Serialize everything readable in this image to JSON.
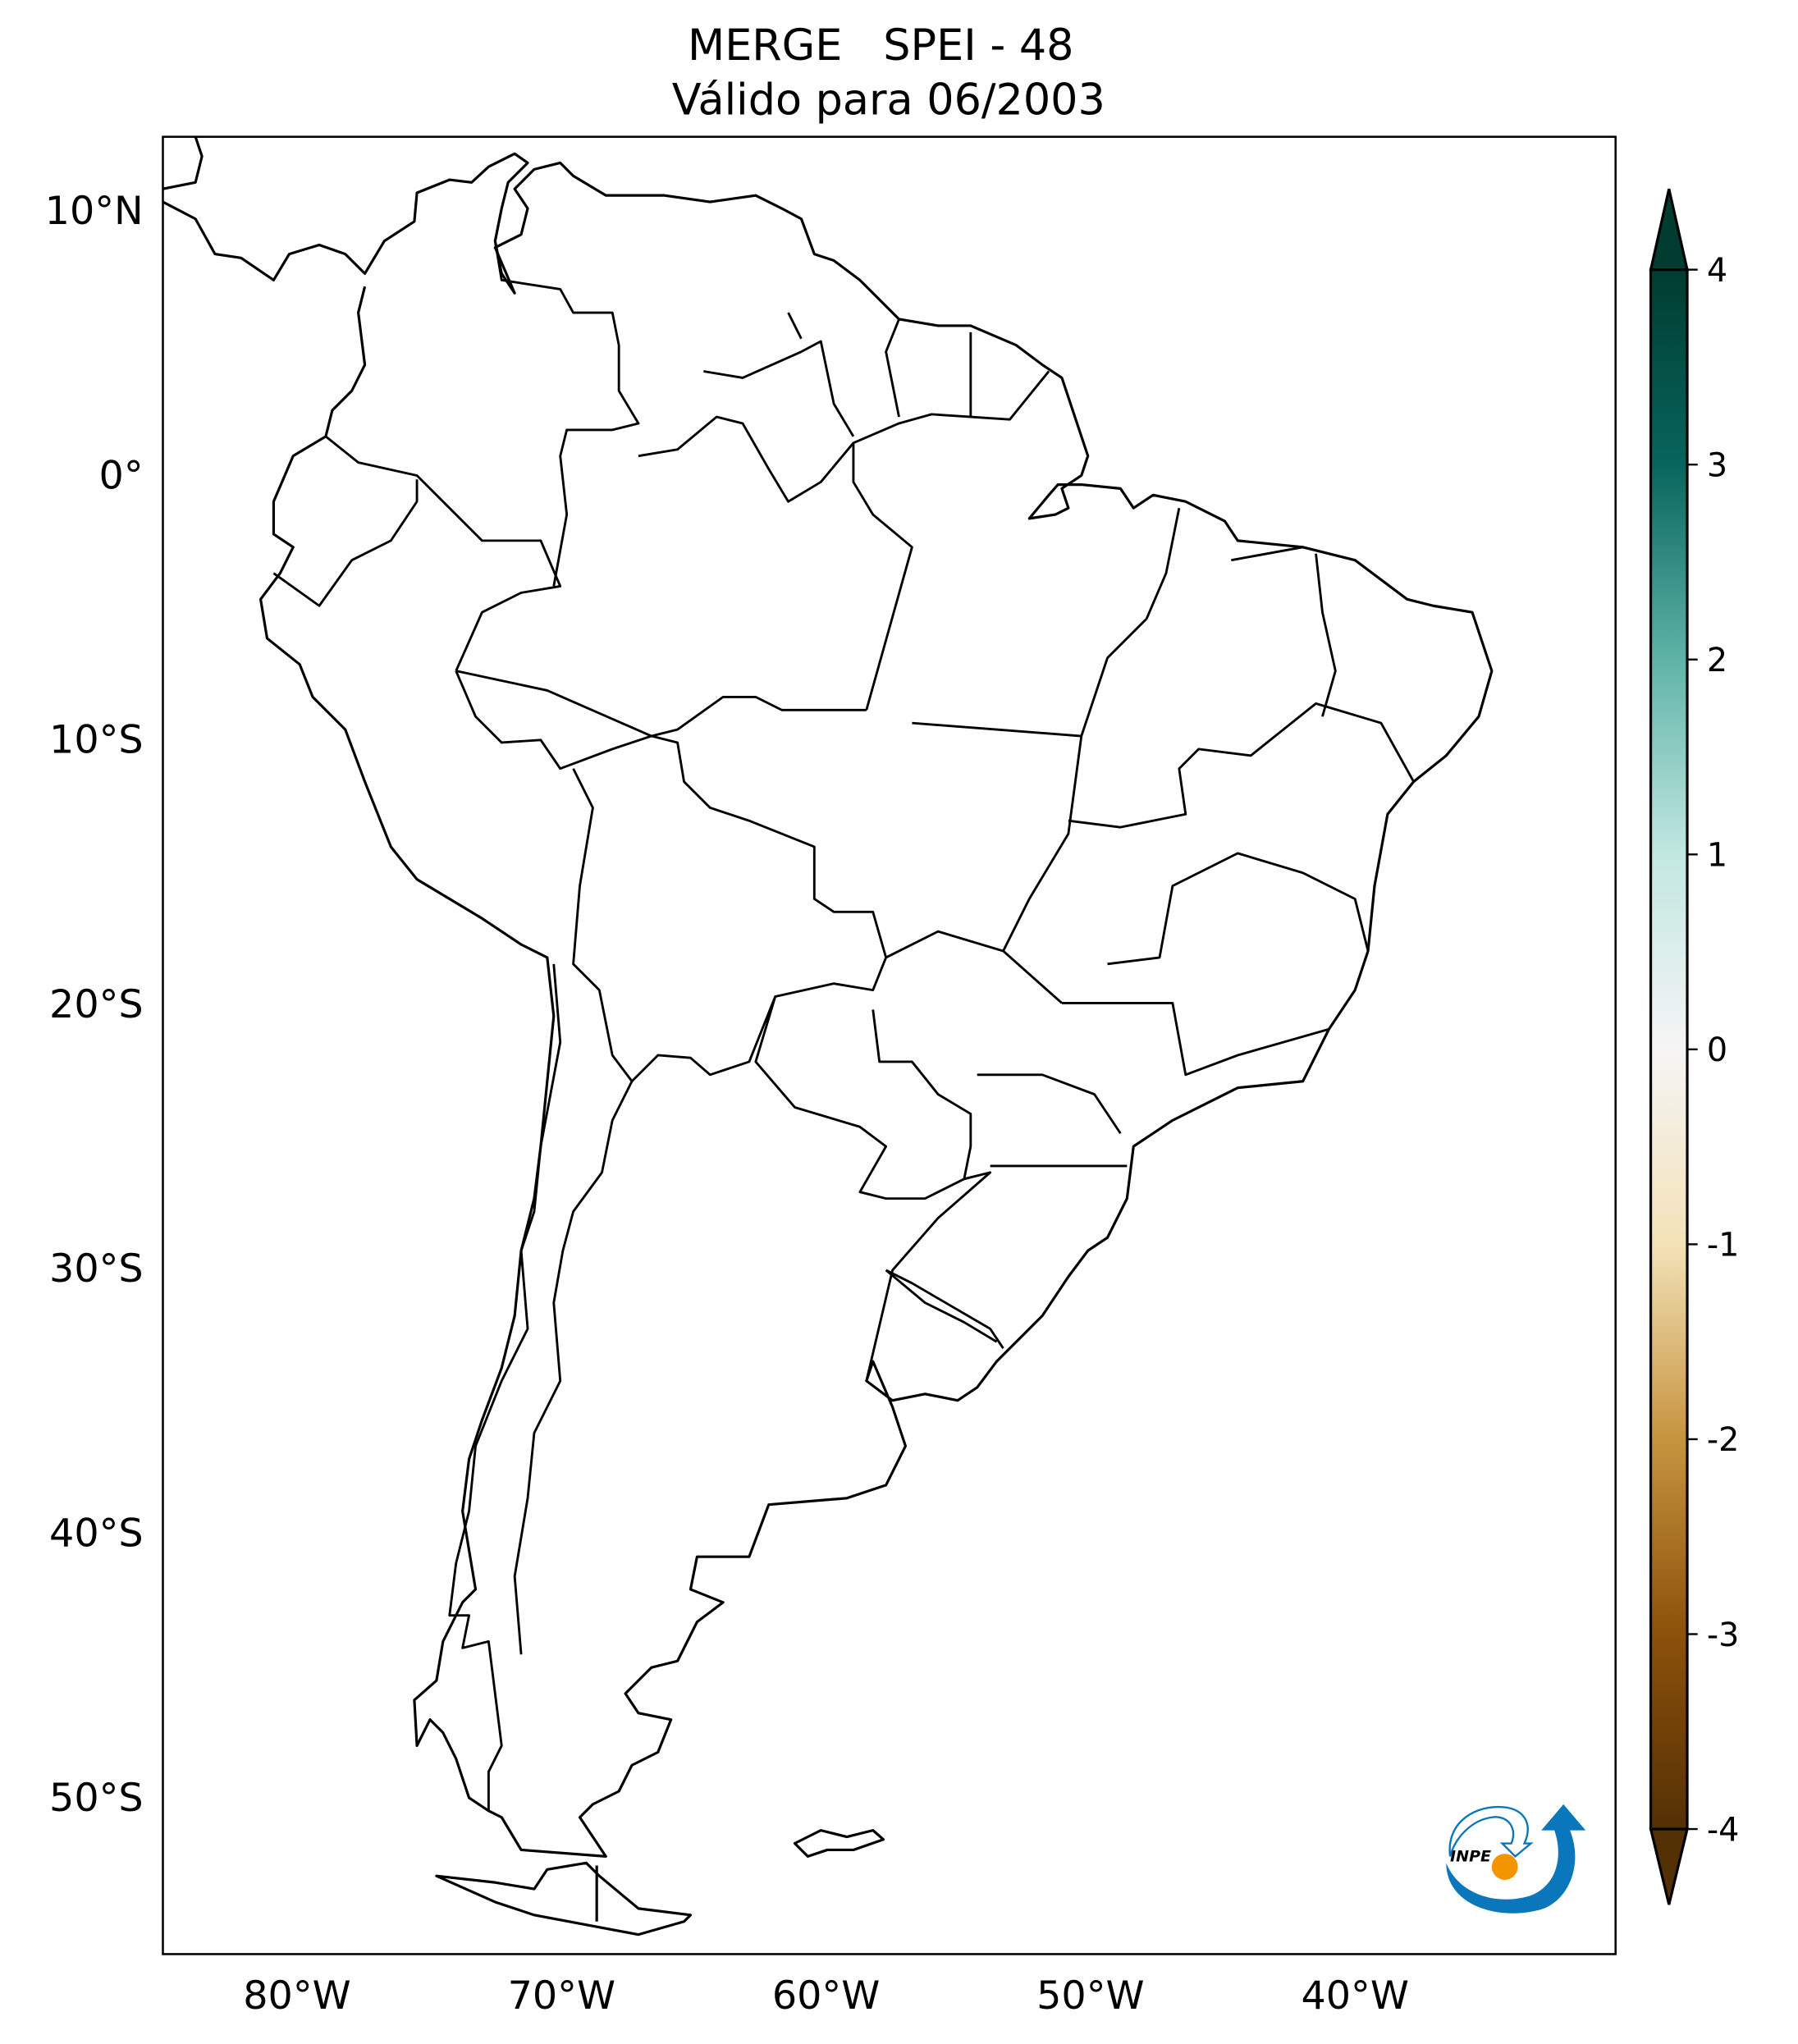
{
  "title": {
    "line1": "MERGE   SPEI - 48",
    "line2": "Válido para 06/2003"
  },
  "map": {
    "projection": "plate carree",
    "extent": {
      "lon": [
        -85,
        -30
      ],
      "lat": [
        -56,
        12.7
      ]
    },
    "lat_ticks": [
      "10°N",
      "0°",
      "10°S",
      "20°S",
      "30°S",
      "40°S",
      "50°S"
    ],
    "lon_ticks": [
      "80°W",
      "70°W",
      "60°W",
      "50°W",
      "40°W"
    ],
    "field": "no anomaly shading visible (values near 0)"
  },
  "colorbar": {
    "colormap": "BrBG",
    "ticks": [
      "4",
      "3",
      "2",
      "1",
      "0",
      "-1",
      "-2",
      "-3",
      "-4"
    ],
    "range": [
      -4,
      4
    ],
    "extend": "both",
    "colors": [
      "#543005",
      "#8c510a",
      "#c6943f",
      "#f3e2b8",
      "#f5f5f5",
      "#c2e7e1",
      "#5fb3a7",
      "#07655d",
      "#003c30"
    ]
  },
  "logo": {
    "text": "INPE",
    "colors": {
      "blue": "#0a77bd",
      "orange": "#f29500"
    }
  }
}
